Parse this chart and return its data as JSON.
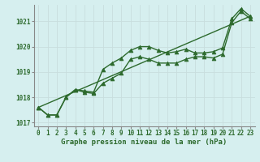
{
  "hours": [
    0,
    1,
    2,
    3,
    4,
    5,
    6,
    7,
    8,
    9,
    10,
    11,
    12,
    13,
    14,
    15,
    16,
    17,
    18,
    19,
    20,
    21,
    22,
    23
  ],
  "line1": [
    1017.6,
    1017.3,
    1017.3,
    1018.0,
    1018.3,
    1018.25,
    1018.2,
    1019.1,
    1019.35,
    1019.55,
    1019.85,
    1020.0,
    1020.0,
    1019.85,
    1019.75,
    1019.8,
    1019.9,
    1019.75,
    1019.75,
    1019.8,
    1019.95,
    1021.1,
    1021.5,
    1021.2
  ],
  "line2": [
    1017.6,
    1017.3,
    1017.3,
    1018.0,
    1018.3,
    1018.2,
    1018.15,
    1018.55,
    1018.75,
    1018.95,
    1019.5,
    1019.6,
    1019.5,
    1019.35,
    1019.35,
    1019.35,
    1019.5,
    1019.6,
    1019.6,
    1019.55,
    1019.7,
    1020.95,
    1021.4,
    1021.1
  ],
  "line3_x": [
    0,
    23
  ],
  "line3_y": [
    1017.6,
    1021.2
  ],
  "bg_color": "#d6efef",
  "plot_bg_color": "#d6efef",
  "line_color": "#2d6a2d",
  "grid_color": "#c8dede",
  "spine_color": "#888888",
  "xlabel": "Graphe pression niveau de la mer (hPa)",
  "ylim": [
    1016.85,
    1021.65
  ],
  "yticks": [
    1017,
    1018,
    1019,
    1020,
    1021
  ],
  "xticks": [
    0,
    1,
    2,
    3,
    4,
    5,
    6,
    7,
    8,
    9,
    10,
    11,
    12,
    13,
    14,
    15,
    16,
    17,
    18,
    19,
    20,
    21,
    22,
    23
  ],
  "markersize": 3.5,
  "linewidth": 1.0,
  "tick_fontsize": 5.5,
  "label_fontsize": 6.5
}
